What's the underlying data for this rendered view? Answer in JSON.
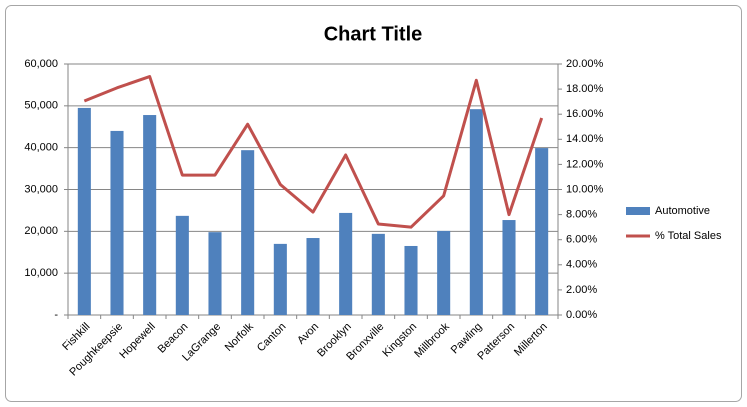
{
  "chart_data": {
    "type": "bar-line",
    "title": "Chart Title",
    "categories": [
      "Fishkill",
      "Poughkeepsie",
      "Hopewell",
      "Beacon",
      "LaGrange",
      "Norfolk",
      "Canton",
      "Avon",
      "Brooklyn",
      "Bronxville",
      "Kingston",
      "Millbrook",
      "Pawling",
      "Patterson",
      "Millerton"
    ],
    "series": [
      {
        "name": "Automotive",
        "type": "bar",
        "color": "#4f81bd",
        "values": [
          49500,
          44000,
          47800,
          23700,
          19800,
          39400,
          17000,
          18400,
          24400,
          19400,
          16500,
          20100,
          49200,
          22700,
          39900
        ]
      },
      {
        "name": "% Total Sales",
        "type": "line",
        "axis": "y2",
        "color": "#c0504d",
        "values": [
          17.05,
          18.1,
          19.0,
          11.15,
          11.15,
          15.2,
          10.4,
          8.2,
          12.75,
          7.25,
          7.0,
          9.5,
          18.7,
          8.0,
          15.7
        ]
      }
    ],
    "ylim": [
      0,
      60000
    ],
    "yticks": [
      {
        "value": 0,
        "label": "-"
      },
      {
        "value": 10000,
        "label": "10,000"
      },
      {
        "value": 20000,
        "label": "20,000"
      },
      {
        "value": 30000,
        "label": "30,000"
      },
      {
        "value": 40000,
        "label": "40,000"
      },
      {
        "value": 50000,
        "label": "50,000"
      },
      {
        "value": 60000,
        "label": "60,000"
      }
    ],
    "y2lim": [
      0,
      20
    ],
    "y2ticks": [
      {
        "value": 0,
        "label": "0.00%"
      },
      {
        "value": 2,
        "label": "2.00%"
      },
      {
        "value": 4,
        "label": "4.00%"
      },
      {
        "value": 6,
        "label": "6.00%"
      },
      {
        "value": 8,
        "label": "8.00%"
      },
      {
        "value": 10,
        "label": "10.00%"
      },
      {
        "value": 12,
        "label": "12.00%"
      },
      {
        "value": 14,
        "label": "14.00%"
      },
      {
        "value": 16,
        "label": "16.00%"
      },
      {
        "value": 18,
        "label": "18.00%"
      },
      {
        "value": 20,
        "label": "20.00%"
      }
    ],
    "grid": true,
    "legend": "right"
  }
}
